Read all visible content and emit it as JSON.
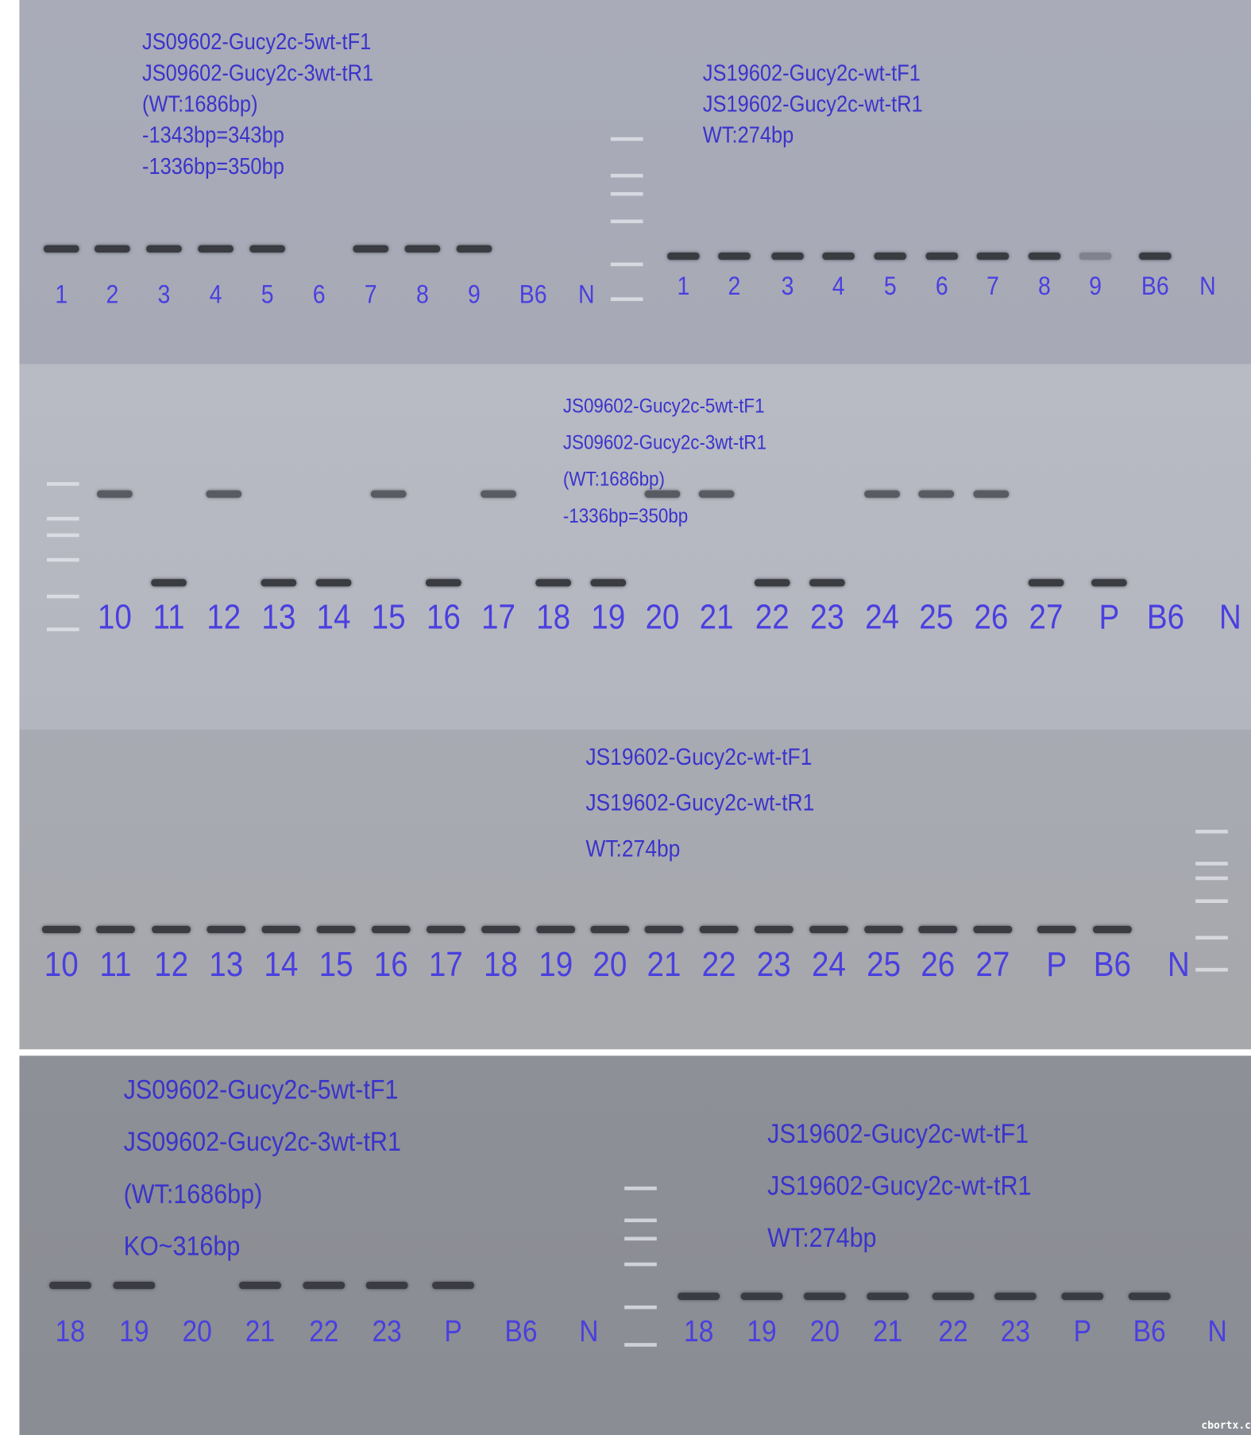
{
  "text_color": "#3a33cc",
  "gels": [
    {
      "id": "g1",
      "primers": [
        "JS09602-Gucy2c-5wt-tF1",
        "JS09602-Gucy2c-3wt-tR1",
        "(WT:1686bp)",
        "-1343bp=343bp",
        "-1336bp=350bp"
      ],
      "lanes": [
        {
          "label": "1",
          "bands": [
            "low"
          ]
        },
        {
          "label": "2",
          "bands": [
            "low"
          ]
        },
        {
          "label": "3",
          "bands": [
            "low"
          ]
        },
        {
          "label": "4",
          "bands": [
            "low"
          ]
        },
        {
          "label": "5",
          "bands": [
            "low"
          ]
        },
        {
          "label": "6",
          "bands": []
        },
        {
          "label": "7",
          "bands": [
            "low"
          ]
        },
        {
          "label": "8",
          "bands": [
            "low"
          ]
        },
        {
          "label": "9",
          "bands": [
            "low"
          ]
        },
        {
          "label": "B6",
          "bands": []
        },
        {
          "label": "N",
          "bands": []
        }
      ]
    },
    {
      "id": "g2",
      "primers": [
        "JS19602-Gucy2c-wt-tF1",
        "JS19602-Gucy2c-wt-tR1",
        "WT:274bp"
      ],
      "lanes": [
        {
          "label": "1",
          "bands": [
            "wt"
          ]
        },
        {
          "label": "2",
          "bands": [
            "wt"
          ]
        },
        {
          "label": "3",
          "bands": [
            "wt"
          ]
        },
        {
          "label": "4",
          "bands": [
            "wt"
          ]
        },
        {
          "label": "5",
          "bands": [
            "wt"
          ]
        },
        {
          "label": "6",
          "bands": [
            "wt"
          ]
        },
        {
          "label": "7",
          "bands": [
            "wt"
          ]
        },
        {
          "label": "8",
          "bands": [
            "wt"
          ]
        },
        {
          "label": "9",
          "bands": [
            "wt-faint"
          ]
        },
        {
          "label": "B6",
          "bands": [
            "wt"
          ]
        },
        {
          "label": "N",
          "bands": []
        }
      ]
    },
    {
      "id": "g3",
      "primers": [
        "JS09602-Gucy2c-5wt-tF1",
        "JS09602-Gucy2c-3wt-tR1",
        "(WT:1686bp)",
        "-1336bp=350bp"
      ],
      "lanes": [
        {
          "label": "10",
          "bands": [
            "high"
          ]
        },
        {
          "label": "11",
          "bands": [
            "low"
          ]
        },
        {
          "label": "12",
          "bands": [
            "high"
          ]
        },
        {
          "label": "13",
          "bands": [
            "low"
          ]
        },
        {
          "label": "14",
          "bands": [
            "low"
          ]
        },
        {
          "label": "15",
          "bands": [
            "high"
          ]
        },
        {
          "label": "16",
          "bands": [
            "low"
          ]
        },
        {
          "label": "17",
          "bands": [
            "high"
          ]
        },
        {
          "label": "18",
          "bands": [
            "low"
          ]
        },
        {
          "label": "19",
          "bands": [
            "low"
          ]
        },
        {
          "label": "20",
          "bands": [
            "high"
          ]
        },
        {
          "label": "21",
          "bands": [
            "high"
          ]
        },
        {
          "label": "22",
          "bands": [
            "low"
          ]
        },
        {
          "label": "23",
          "bands": [
            "low"
          ]
        },
        {
          "label": "24",
          "bands": [
            "high"
          ]
        },
        {
          "label": "25",
          "bands": [
            "high"
          ]
        },
        {
          "label": "26",
          "bands": [
            "high"
          ]
        },
        {
          "label": "27",
          "bands": [
            "low"
          ]
        },
        {
          "label": "P",
          "bands": [
            "low"
          ]
        },
        {
          "label": "B6",
          "bands": []
        },
        {
          "label": "N",
          "bands": []
        }
      ]
    },
    {
      "id": "g4",
      "primers": [
        "JS19602-Gucy2c-wt-tF1",
        "JS19602-Gucy2c-wt-tR1",
        "WT:274bp"
      ],
      "lanes": [
        {
          "label": "10",
          "bands": [
            "wt"
          ]
        },
        {
          "label": "11",
          "bands": [
            "wt"
          ]
        },
        {
          "label": "12",
          "bands": [
            "wt"
          ]
        },
        {
          "label": "13",
          "bands": [
            "wt"
          ]
        },
        {
          "label": "14",
          "bands": [
            "wt"
          ]
        },
        {
          "label": "15",
          "bands": [
            "wt"
          ]
        },
        {
          "label": "16",
          "bands": [
            "wt"
          ]
        },
        {
          "label": "17",
          "bands": [
            "wt"
          ]
        },
        {
          "label": "18",
          "bands": [
            "wt"
          ]
        },
        {
          "label": "19",
          "bands": [
            "wt"
          ]
        },
        {
          "label": "20",
          "bands": [
            "wt"
          ]
        },
        {
          "label": "21",
          "bands": [
            "wt"
          ]
        },
        {
          "label": "22",
          "bands": [
            "wt"
          ]
        },
        {
          "label": "23",
          "bands": [
            "wt"
          ]
        },
        {
          "label": "24",
          "bands": [
            "wt"
          ]
        },
        {
          "label": "25",
          "bands": [
            "wt"
          ]
        },
        {
          "label": "26",
          "bands": [
            "wt"
          ]
        },
        {
          "label": "27",
          "bands": [
            "wt"
          ]
        },
        {
          "label": "P",
          "bands": [
            "wt"
          ]
        },
        {
          "label": "B6",
          "bands": [
            "wt"
          ]
        },
        {
          "label": "N",
          "bands": []
        }
      ]
    },
    {
      "id": "g5",
      "primers": [
        "JS09602-Gucy2c-5wt-tF1",
        "JS09602-Gucy2c-3wt-tR1",
        "(WT:1686bp)",
        "KO~316bp"
      ],
      "lanes": [
        {
          "label": "18",
          "bands": [
            "ko"
          ]
        },
        {
          "label": "19",
          "bands": [
            "ko"
          ]
        },
        {
          "label": "20",
          "bands": []
        },
        {
          "label": "21",
          "bands": [
            "ko"
          ]
        },
        {
          "label": "22",
          "bands": [
            "ko"
          ]
        },
        {
          "label": "23",
          "bands": [
            "ko"
          ]
        },
        {
          "label": "P",
          "bands": [
            "ko"
          ]
        },
        {
          "label": "B6",
          "bands": []
        },
        {
          "label": "N",
          "bands": []
        }
      ]
    },
    {
      "id": "g6",
      "primers": [
        "JS19602-Gucy2c-wt-tF1",
        "JS19602-Gucy2c-wt-tR1",
        "WT:274bp"
      ],
      "lanes": [
        {
          "label": "18",
          "bands": [
            "wt"
          ]
        },
        {
          "label": "19",
          "bands": [
            "wt"
          ]
        },
        {
          "label": "20",
          "bands": [
            "wt"
          ]
        },
        {
          "label": "21",
          "bands": [
            "wt"
          ]
        },
        {
          "label": "22",
          "bands": [
            "wt"
          ]
        },
        {
          "label": "23",
          "bands": [
            "wt"
          ]
        },
        {
          "label": "P",
          "bands": [
            "wt"
          ]
        },
        {
          "label": "B6",
          "bands": [
            "wt"
          ]
        },
        {
          "label": "N",
          "bands": []
        }
      ]
    }
  ],
  "watermark": "cbortx.c"
}
